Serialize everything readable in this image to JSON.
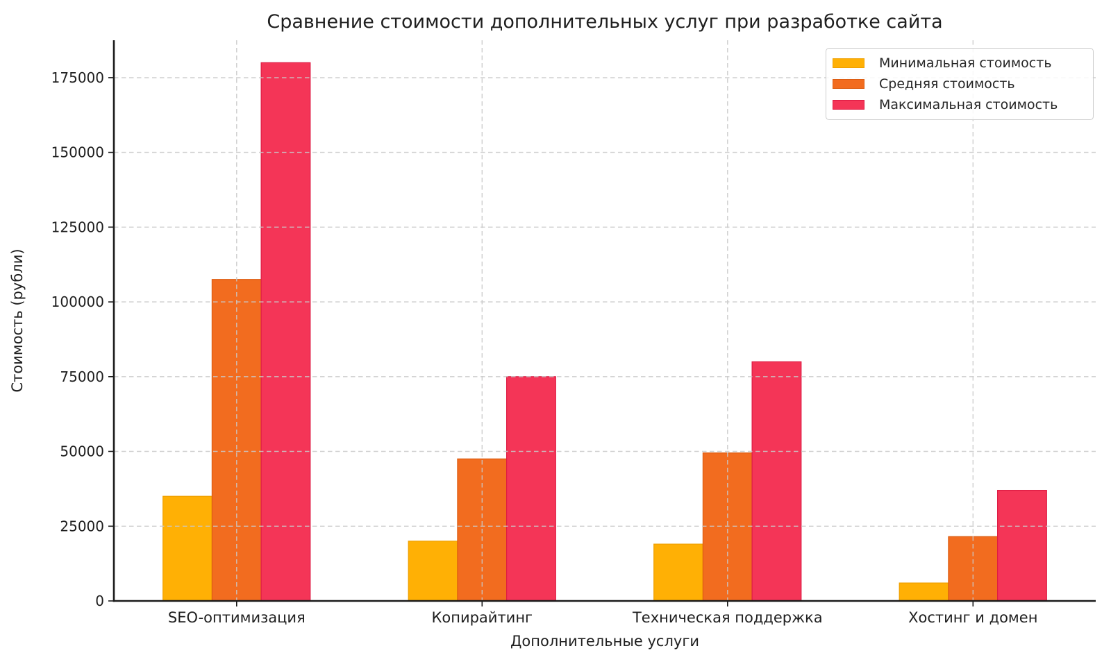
{
  "figure": {
    "title": "Сравнение стоимости дополнительных услуг при разработке сайта"
  },
  "chart_data": {
    "type": "bar",
    "title": "Сравнение стоимости дополнительных услуг при разработке сайта",
    "xlabel": "Дополнительные услуги",
    "ylabel": "Стоимость (рубли)",
    "categories": [
      "SEO-оптимизация",
      "Копирайтинг",
      "Техническая поддержка",
      "Хостинг и домен"
    ],
    "series": [
      {
        "name": "Минимальная стоимость",
        "color": "#FFB005",
        "edge_color": "#EFA000",
        "values": [
          35000,
          20000,
          19000,
          6000
        ]
      },
      {
        "name": "Средняя стоимость",
        "color": "#F26C1F",
        "edge_color": "#DD5D12",
        "values": [
          107500,
          47500,
          49500,
          21500
        ]
      },
      {
        "name": "Максимальная стоимость",
        "color": "#F43557",
        "edge_color": "#DE1C44",
        "values": [
          180000,
          75000,
          80000,
          37000
        ]
      }
    ],
    "yticks": [
      0,
      25000,
      50000,
      75000,
      100000,
      125000,
      150000,
      175000
    ],
    "ylim": [
      0,
      187500
    ],
    "grid": true,
    "grid_style": "dashed",
    "grid_color": "#c9c9c9",
    "legend_position": "upper right",
    "axis_color": "#1a1a1a",
    "tick_label_color": "#1f1f1f"
  }
}
